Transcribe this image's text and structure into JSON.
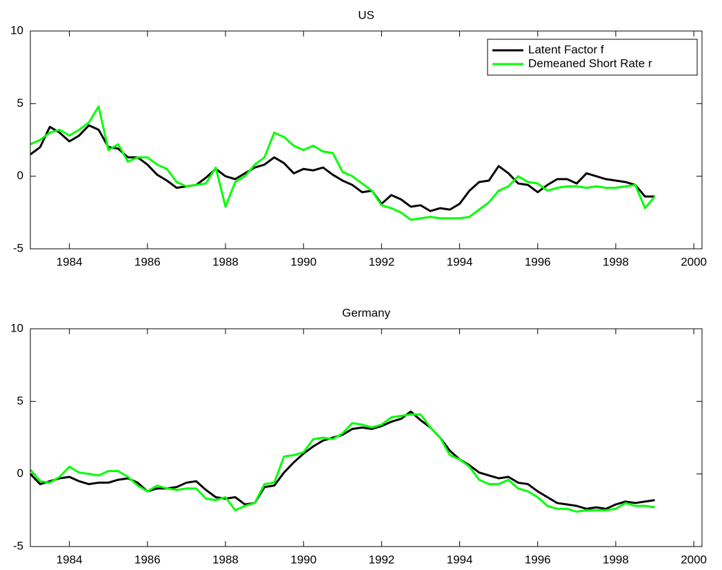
{
  "chart_data": [
    {
      "type": "line",
      "title": "US",
      "x": [
        1983,
        1983.25,
        1983.5,
        1983.75,
        1984,
        1984.25,
        1984.5,
        1984.75,
        1985,
        1985.25,
        1985.5,
        1985.75,
        1986,
        1986.25,
        1986.5,
        1986.75,
        1987,
        1987.25,
        1987.5,
        1987.75,
        1988,
        1988.25,
        1988.5,
        1988.75,
        1989,
        1989.25,
        1989.5,
        1989.75,
        1990,
        1990.25,
        1990.5,
        1990.75,
        1991,
        1991.25,
        1991.5,
        1991.75,
        1992,
        1992.25,
        1992.5,
        1992.75,
        1993,
        1993.25,
        1993.5,
        1993.75,
        1994,
        1994.25,
        1994.5,
        1994.75,
        1995,
        1995.25,
        1995.5,
        1995.75,
        1996,
        1996.25,
        1996.5,
        1996.75,
        1997,
        1997.25,
        1997.5,
        1997.75,
        1998,
        1998.25,
        1998.5,
        1998.75,
        1999
      ],
      "series": [
        {
          "name": "Latent Factor f",
          "color": "#000000",
          "values": [
            1.5,
            2.0,
            3.4,
            3.0,
            2.4,
            2.8,
            3.5,
            3.2,
            2.0,
            1.9,
            1.3,
            1.3,
            0.8,
            0.1,
            -0.3,
            -0.8,
            -0.7,
            -0.6,
            -0.1,
            0.5,
            0.0,
            -0.2,
            0.2,
            0.6,
            0.8,
            1.3,
            0.9,
            0.2,
            0.5,
            0.4,
            0.6,
            0.1,
            -0.3,
            -0.6,
            -1.1,
            -1.0,
            -1.9,
            -1.3,
            -1.6,
            -2.1,
            -2.0,
            -2.4,
            -2.2,
            -2.3,
            -1.9,
            -1.0,
            -0.4,
            -0.3,
            0.7,
            0.2,
            -0.5,
            -0.6,
            -1.1,
            -0.6,
            -0.2,
            -0.2,
            -0.5,
            0.2,
            0.0,
            -0.2,
            -0.3,
            -0.4,
            -0.6,
            -1.4,
            -1.4
          ]
        },
        {
          "name": "Demeaned Short Rate r",
          "color": "#00ff00",
          "values": [
            2.2,
            2.5,
            3.0,
            3.2,
            2.8,
            3.2,
            3.7,
            4.8,
            1.8,
            2.2,
            1.0,
            1.3,
            1.3,
            0.8,
            0.5,
            -0.4,
            -0.7,
            -0.6,
            -0.5,
            0.6,
            -2.1,
            -0.4,
            0.0,
            0.8,
            1.3,
            3.0,
            2.7,
            2.1,
            1.8,
            2.1,
            1.7,
            1.6,
            0.3,
            0.0,
            -0.5,
            -1.0,
            -2.0,
            -2.2,
            -2.5,
            -3.0,
            -2.9,
            -2.8,
            -2.9,
            -2.9,
            -2.9,
            -2.8,
            -2.3,
            -1.8,
            -1.0,
            -0.7,
            0.0,
            -0.4,
            -0.5,
            -1.0,
            -0.8,
            -0.7,
            -0.7,
            -0.8,
            -0.7,
            -0.8,
            -0.8,
            -0.7,
            -0.6,
            -2.2,
            -1.4
          ]
        }
      ],
      "xlim": [
        1983,
        2000.21
      ],
      "xticks": [
        1984,
        1986,
        1988,
        1990,
        1992,
        1994,
        1996,
        1998,
        2000
      ],
      "ylim": [
        -5,
        10
      ],
      "yticks": [
        -5,
        0,
        5,
        10
      ],
      "legend": "upper right"
    },
    {
      "type": "line",
      "title": "Germany",
      "x": [
        1983,
        1983.25,
        1983.5,
        1983.75,
        1984,
        1984.25,
        1984.5,
        1984.75,
        1985,
        1985.25,
        1985.5,
        1985.75,
        1986,
        1986.25,
        1986.5,
        1986.75,
        1987,
        1987.25,
        1987.5,
        1987.75,
        1988,
        1988.25,
        1988.5,
        1988.75,
        1989,
        1989.25,
        1989.5,
        1989.75,
        1990,
        1990.25,
        1990.5,
        1990.75,
        1991,
        1991.25,
        1991.5,
        1991.75,
        1992,
        1992.25,
        1992.5,
        1992.75,
        1993,
        1993.25,
        1993.5,
        1993.75,
        1994,
        1994.25,
        1994.5,
        1994.75,
        1995,
        1995.25,
        1995.5,
        1995.75,
        1996,
        1996.25,
        1996.5,
        1996.75,
        1997,
        1997.25,
        1997.5,
        1997.75,
        1998,
        1998.25,
        1998.5,
        1998.75,
        1999
      ],
      "series": [
        {
          "color": "#000000",
          "values": [
            0.0,
            -0.7,
            -0.5,
            -0.3,
            -0.2,
            -0.5,
            -0.7,
            -0.6,
            -0.6,
            -0.4,
            -0.3,
            -0.6,
            -1.2,
            -1.0,
            -1.0,
            -0.9,
            -0.6,
            -0.5,
            -1.1,
            -1.6,
            -1.7,
            -1.6,
            -2.1,
            -2.0,
            -0.9,
            -0.8,
            0.1,
            0.8,
            1.4,
            1.9,
            2.3,
            2.5,
            2.7,
            3.1,
            3.2,
            3.1,
            3.3,
            3.6,
            3.8,
            4.3,
            3.7,
            3.2,
            2.5,
            1.6,
            1.0,
            0.6,
            0.1,
            -0.1,
            -0.3,
            -0.2,
            -0.6,
            -0.7,
            -1.2,
            -1.6,
            -2.0,
            -2.1,
            -2.2,
            -2.4,
            -2.3,
            -2.4,
            -2.1,
            -1.9,
            -2.0,
            -1.9,
            -1.8
          ]
        },
        {
          "color": "#00ff00",
          "values": [
            0.3,
            -0.5,
            -0.6,
            -0.2,
            0.5,
            0.1,
            0.0,
            -0.1,
            0.2,
            0.2,
            -0.2,
            -0.8,
            -1.2,
            -0.8,
            -1.0,
            -1.1,
            -1.0,
            -1.0,
            -1.7,
            -1.8,
            -1.6,
            -2.5,
            -2.2,
            -2.0,
            -0.7,
            -0.6,
            1.2,
            1.3,
            1.5,
            2.4,
            2.5,
            2.4,
            2.8,
            3.5,
            3.4,
            3.2,
            3.4,
            3.9,
            4.0,
            4.1,
            4.1,
            3.2,
            2.5,
            1.3,
            1.0,
            0.5,
            -0.4,
            -0.7,
            -0.7,
            -0.4,
            -1.0,
            -1.2,
            -1.6,
            -2.2,
            -2.4,
            -2.4,
            -2.6,
            -2.5,
            -2.5,
            -2.5,
            -2.4,
            -2.0,
            -2.2,
            -2.2,
            -2.3
          ]
        }
      ],
      "xlim": [
        1983,
        2000.21
      ],
      "xticks": [
        1984,
        1986,
        1988,
        1990,
        1992,
        1994,
        1996,
        1998,
        2000
      ],
      "ylim": [
        -5,
        10
      ],
      "yticks": [
        -5,
        0,
        5,
        10
      ]
    }
  ]
}
